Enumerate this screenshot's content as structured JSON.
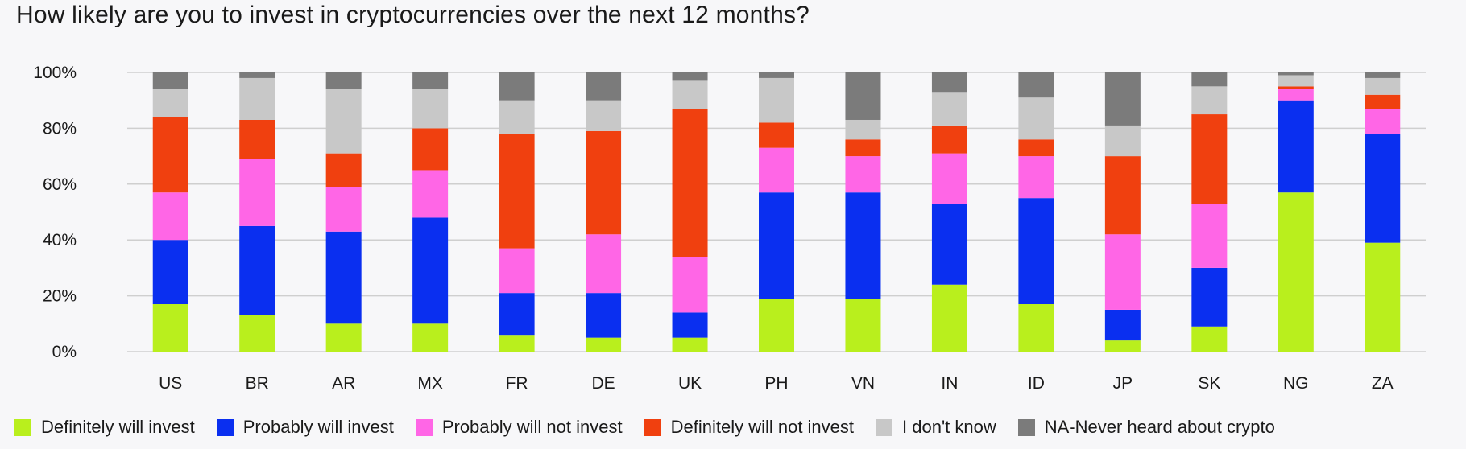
{
  "chart_data": {
    "type": "bar",
    "stacked": true,
    "title": "How likely are you to invest in cryptocurrencies over the next 12 months?",
    "xlabel": "",
    "ylabel": "",
    "ylim": [
      0,
      100
    ],
    "y_ticks": [
      "0%",
      "20%",
      "40%",
      "60%",
      "80%",
      "100%"
    ],
    "y_tick_values": [
      0,
      20,
      40,
      60,
      80,
      100
    ],
    "grid": true,
    "legend_position": "bottom",
    "categories": [
      "US",
      "BR",
      "AR",
      "MX",
      "FR",
      "DE",
      "UK",
      "PH",
      "VN",
      "IN",
      "ID",
      "JP",
      "SK",
      "NG",
      "ZA"
    ],
    "series": [
      {
        "name": "Definitely will invest",
        "color": "#b9ef1d",
        "values": [
          17,
          13,
          10,
          10,
          6,
          5,
          5,
          19,
          19,
          24,
          17,
          4,
          9,
          57,
          39
        ]
      },
      {
        "name": "Probably will invest",
        "color": "#0a2ff0",
        "values": [
          23,
          32,
          33,
          38,
          15,
          16,
          9,
          38,
          38,
          29,
          38,
          11,
          21,
          33,
          39
        ]
      },
      {
        "name": "Probably will not invest",
        "color": "#ff66e6",
        "values": [
          17,
          24,
          16,
          17,
          16,
          21,
          20,
          16,
          13,
          18,
          15,
          27,
          23,
          4,
          9
        ]
      },
      {
        "name": "Definitely will not invest",
        "color": "#f0400f",
        "values": [
          27,
          14,
          12,
          15,
          41,
          37,
          53,
          9,
          6,
          10,
          6,
          28,
          32,
          1,
          5
        ]
      },
      {
        "name": "I don't know",
        "color": "#c8c8c8",
        "values": [
          10,
          15,
          23,
          14,
          12,
          11,
          10,
          16,
          7,
          12,
          15,
          11,
          10,
          4,
          6
        ]
      },
      {
        "name": "NA-Never heard about crypto",
        "color": "#7b7b7b",
        "values": [
          6,
          2,
          6,
          6,
          10,
          10,
          3,
          2,
          17,
          7,
          9,
          19,
          5,
          1,
          2
        ]
      }
    ]
  }
}
